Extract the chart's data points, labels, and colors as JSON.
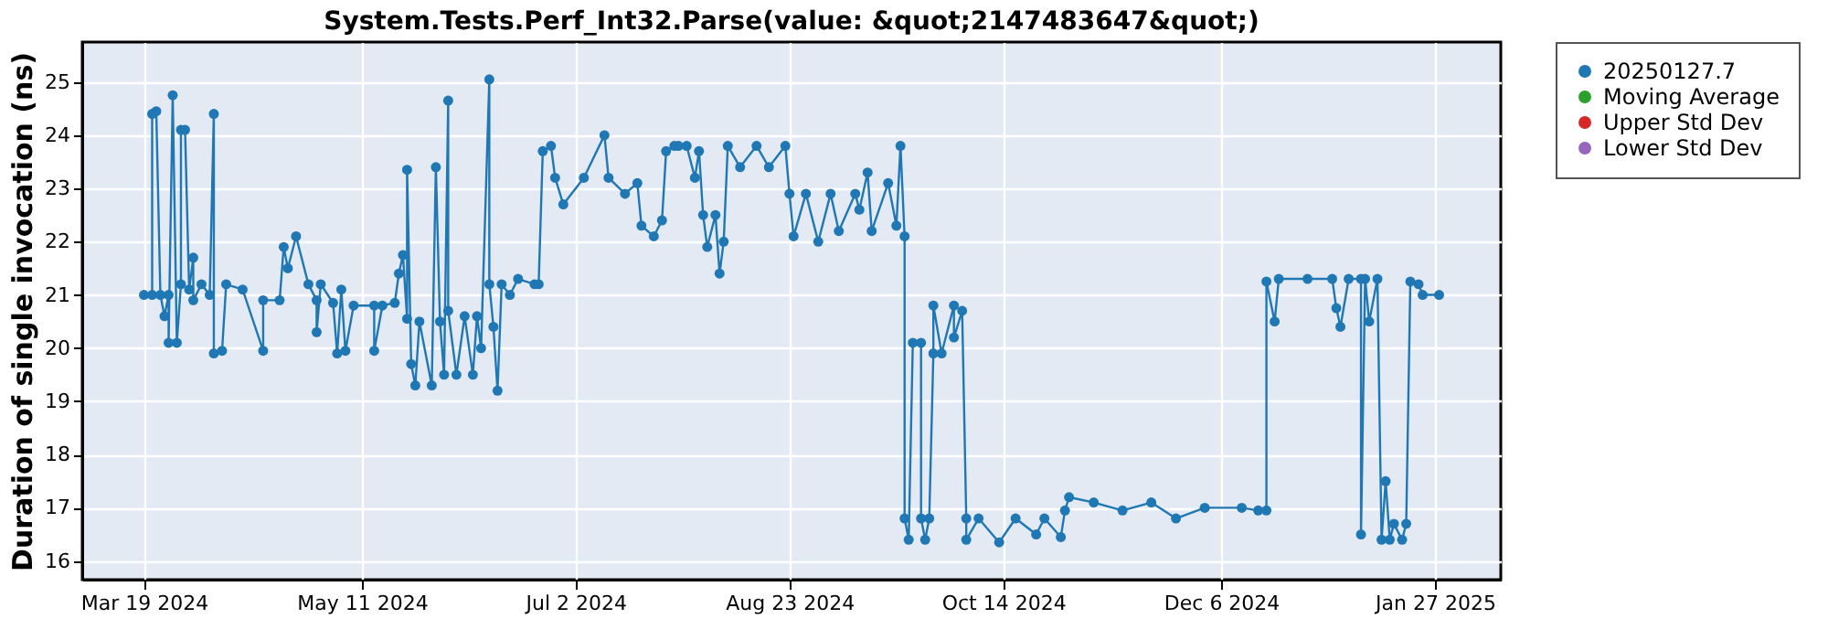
{
  "chart_data": {
    "type": "line",
    "title": "System.Tests.Perf_Int32.Parse(value: &quot;2147483647&quot;)",
    "ylabel": "Duration of single invocation (ns)",
    "xlim": [
      "2024-03-04",
      "2025-02-12"
    ],
    "xticks": [
      {
        "value": "2024-03-19",
        "label": "Mar 19 2024"
      },
      {
        "value": "2024-05-11",
        "label": "May 11 2024"
      },
      {
        "value": "2024-07-02",
        "label": "Jul 2 2024"
      },
      {
        "value": "2024-08-23",
        "label": "Aug 23 2024"
      },
      {
        "value": "2024-10-14",
        "label": "Oct 14 2024"
      },
      {
        "value": "2024-12-06",
        "label": "Dec 6 2024"
      },
      {
        "value": "2025-01-27",
        "label": "Jan 27 2025"
      }
    ],
    "ylim": [
      15.65,
      25.75
    ],
    "yticks": [
      16,
      17,
      18,
      19,
      20,
      21,
      22,
      23,
      24,
      25
    ],
    "grid": true,
    "legend": "right",
    "marker": "circle",
    "line_style": "solid",
    "series": [
      {
        "name": "20250127.7",
        "color": "#1f77b4",
        "x": [
          "2024-03-19",
          "2024-03-21",
          "2024-03-21",
          "2024-03-22",
          "2024-03-23",
          "2024-03-24",
          "2024-03-25",
          "2024-03-25",
          "2024-03-26",
          "2024-03-27",
          "2024-03-28",
          "2024-03-28",
          "2024-03-29",
          "2024-03-30",
          "2024-03-31",
          "2024-03-31",
          "2024-04-02",
          "2024-04-04",
          "2024-04-05",
          "2024-04-05",
          "2024-04-07",
          "2024-04-08",
          "2024-04-12",
          "2024-04-17",
          "2024-04-17",
          "2024-04-21",
          "2024-04-22",
          "2024-04-23",
          "2024-04-25",
          "2024-04-28",
          "2024-04-30",
          "2024-04-30",
          "2024-05-01",
          "2024-05-04",
          "2024-05-05",
          "2024-05-06",
          "2024-05-07",
          "2024-05-09",
          "2024-05-14",
          "2024-05-14",
          "2024-05-16",
          "2024-05-19",
          "2024-05-20",
          "2024-05-21",
          "2024-05-22",
          "2024-05-22",
          "2024-05-23",
          "2024-05-24",
          "2024-05-25",
          "2024-05-28",
          "2024-05-29",
          "2024-05-30",
          "2024-05-31",
          "2024-06-01",
          "2024-06-01",
          "2024-06-03",
          "2024-06-05",
          "2024-06-07",
          "2024-06-08",
          "2024-06-09",
          "2024-06-11",
          "2024-06-11",
          "2024-06-12",
          "2024-06-13",
          "2024-06-14",
          "2024-06-16",
          "2024-06-18",
          "2024-06-22",
          "2024-06-23",
          "2024-06-24",
          "2024-06-26",
          "2024-06-27",
          "2024-06-29",
          "2024-07-04",
          "2024-07-09",
          "2024-07-10",
          "2024-07-14",
          "2024-07-17",
          "2024-07-18",
          "2024-07-21",
          "2024-07-23",
          "2024-07-24",
          "2024-07-26",
          "2024-07-27",
          "2024-07-29",
          "2024-07-31",
          "2024-08-01",
          "2024-08-02",
          "2024-08-03",
          "2024-08-05",
          "2024-08-06",
          "2024-08-07",
          "2024-08-08",
          "2024-08-11",
          "2024-08-15",
          "2024-08-18",
          "2024-08-22",
          "2024-08-23",
          "2024-08-24",
          "2024-08-27",
          "2024-08-30",
          "2024-09-02",
          "2024-09-04",
          "2024-09-08",
          "2024-09-09",
          "2024-09-11",
          "2024-09-12",
          "2024-09-16",
          "2024-09-18",
          "2024-09-19",
          "2024-09-20",
          "2024-09-20",
          "2024-09-21",
          "2024-09-22",
          "2024-09-24",
          "2024-09-24",
          "2024-09-25",
          "2024-09-26",
          "2024-09-27",
          "2024-09-27",
          "2024-09-29",
          "2024-10-02",
          "2024-10-02",
          "2024-10-04",
          "2024-10-05",
          "2024-10-05",
          "2024-10-08",
          "2024-10-13",
          "2024-10-17",
          "2024-10-22",
          "2024-10-24",
          "2024-10-28",
          "2024-10-29",
          "2024-10-30",
          "2024-11-05",
          "2024-11-12",
          "2024-11-19",
          "2024-11-25",
          "2024-12-02",
          "2024-12-11",
          "2024-12-15",
          "2024-12-17",
          "2024-12-17",
          "2024-12-19",
          "2024-12-20",
          "2024-12-27",
          "2025-01-02",
          "2025-01-03",
          "2025-01-04",
          "2025-01-06",
          "2025-01-09",
          "2025-01-09",
          "2025-01-10",
          "2025-01-11",
          "2025-01-13",
          "2025-01-14",
          "2025-01-15",
          "2025-01-16",
          "2025-01-17",
          "2025-01-19",
          "2025-01-20",
          "2025-01-21",
          "2025-01-23",
          "2025-01-24",
          "2025-01-28"
        ],
        "values": [
          21.0,
          21.0,
          24.4,
          24.45,
          21.0,
          20.6,
          21.0,
          20.1,
          24.75,
          20.1,
          21.2,
          24.1,
          24.1,
          21.1,
          21.7,
          20.9,
          21.2,
          21.0,
          24.4,
          19.9,
          19.95,
          21.2,
          21.1,
          19.95,
          20.9,
          20.9,
          21.9,
          21.5,
          22.1,
          21.2,
          20.9,
          20.3,
          21.2,
          20.85,
          19.9,
          21.1,
          19.95,
          20.8,
          20.8,
          19.95,
          20.8,
          20.85,
          21.4,
          21.75,
          20.55,
          23.35,
          19.7,
          19.3,
          20.5,
          19.3,
          23.4,
          20.5,
          19.5,
          24.65,
          20.7,
          19.5,
          20.6,
          19.5,
          20.6,
          20.0,
          25.05,
          21.2,
          20.4,
          19.2,
          21.2,
          21.0,
          21.3,
          21.2,
          21.2,
          23.7,
          23.8,
          23.2,
          22.7,
          23.2,
          24.0,
          23.2,
          22.9,
          23.1,
          22.3,
          22.1,
          22.4,
          23.7,
          23.8,
          23.8,
          23.8,
          23.2,
          23.7,
          22.5,
          21.9,
          22.5,
          21.4,
          22.0,
          23.8,
          23.4,
          23.8,
          23.4,
          23.8,
          22.9,
          22.1,
          22.9,
          22.0,
          22.9,
          22.2,
          22.9,
          22.6,
          23.3,
          22.2,
          23.1,
          22.3,
          23.8,
          22.1,
          16.8,
          16.4,
          20.1,
          20.1,
          16.8,
          16.4,
          16.8,
          19.9,
          20.8,
          19.9,
          20.8,
          20.2,
          20.7,
          16.8,
          16.4,
          16.8,
          16.35,
          16.8,
          16.5,
          16.8,
          16.45,
          16.95,
          17.2,
          17.1,
          16.95,
          17.1,
          16.8,
          17.0,
          17.0,
          16.95,
          16.95,
          21.25,
          20.5,
          21.3,
          21.3,
          21.3,
          20.75,
          20.4,
          21.3,
          21.3,
          16.5,
          21.3,
          20.5,
          21.3,
          16.4,
          17.5,
          16.4,
          16.7,
          16.4,
          16.7,
          21.25,
          21.2,
          21.0,
          21.0
        ]
      },
      {
        "name": "Moving Average",
        "color": "#2ca02c"
      },
      {
        "name": "Upper Std Dev",
        "color": "#d62728"
      },
      {
        "name": "Lower Std Dev",
        "color": "#9467bd"
      }
    ]
  }
}
